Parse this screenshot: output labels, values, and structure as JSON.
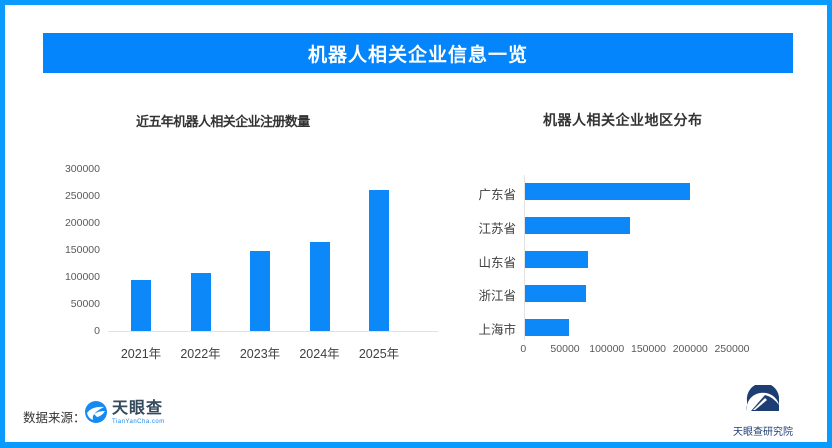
{
  "header": {
    "title": "机器人相关企业信息一览"
  },
  "footer": {
    "source_label": "数据来源：",
    "logo_name": "天眼查",
    "logo_sub": "TianYanCha.com"
  },
  "corner_logo": {
    "text": "天眼查研究院"
  },
  "colors": {
    "frame_blue": "#099bfd",
    "banner_blue": "#0485fb",
    "bar_blue": "#0d88f8",
    "navy": "#1d3e73"
  },
  "chart_data": [
    {
      "type": "bar",
      "orientation": "vertical",
      "title": "近五年机器人相关企业注册数量",
      "categories": [
        "2021年",
        "2022年",
        "2023年",
        "2024年",
        "2025年"
      ],
      "values": [
        95000,
        107000,
        148000,
        164000,
        261000
      ],
      "xlabel": "",
      "ylabel": "",
      "ylim": [
        0,
        300000
      ],
      "yticks": [
        0,
        50000,
        100000,
        150000,
        200000,
        250000,
        300000
      ],
      "grid": false,
      "legend": "none"
    },
    {
      "type": "bar",
      "orientation": "horizontal",
      "title": "机器人相关企业地区分布",
      "categories": [
        "广东省",
        "江苏省",
        "山东省",
        "浙江省",
        "上海市"
      ],
      "values": [
        198000,
        126000,
        75000,
        73000,
        53000
      ],
      "xlabel": "",
      "ylabel": "",
      "xlim": [
        0,
        250000
      ],
      "xticks": [
        0,
        50000,
        100000,
        150000,
        200000,
        250000
      ],
      "grid": false,
      "legend": "none"
    }
  ]
}
